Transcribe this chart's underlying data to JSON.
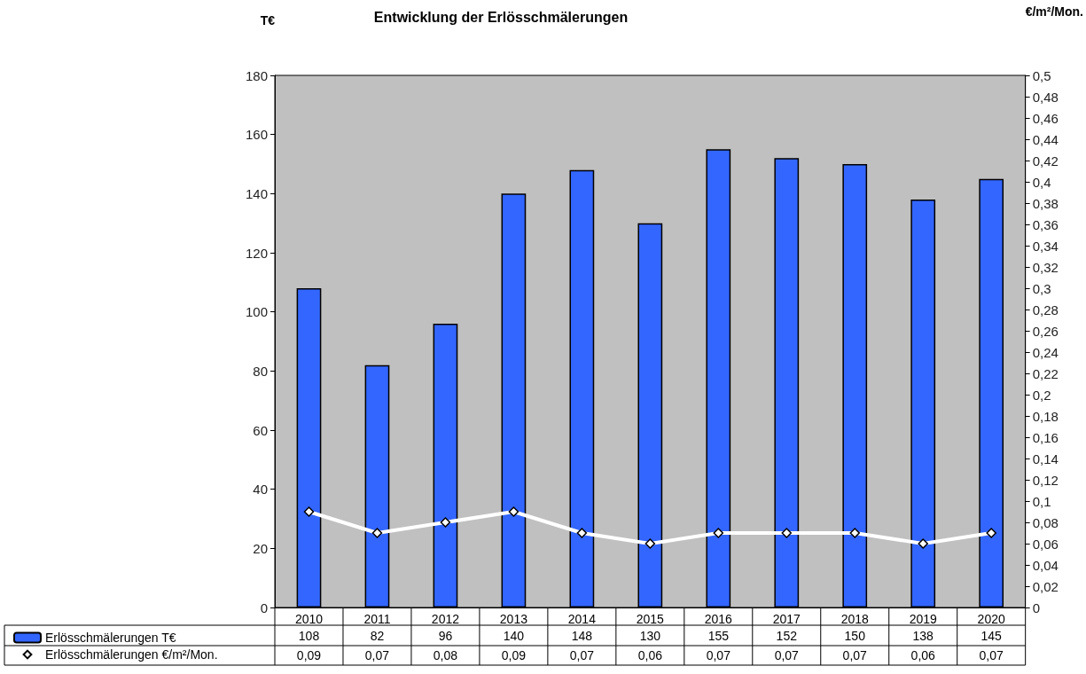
{
  "chart_data": {
    "type": "bar",
    "title": "Entwicklung der Erlösschmälerungen",
    "ylabel": "T€",
    "y2label": "€/m²/Mon.",
    "categories": [
      "2010",
      "2011",
      "2012",
      "2013",
      "2014",
      "2015",
      "2016",
      "2017",
      "2018",
      "2019",
      "2020"
    ],
    "series": [
      {
        "name": "Erlösschmälerungen T€",
        "color": "#3366ff",
        "values": [
          108,
          82,
          96,
          140,
          148,
          130,
          155,
          152,
          150,
          138,
          145
        ],
        "value_labels": [
          "108",
          "82",
          "96",
          "140",
          "148",
          "130",
          "155",
          "152",
          "150",
          "138",
          "145"
        ]
      },
      {
        "name": "Erlösschmälerungen €/m²/Mon.",
        "type": "line",
        "axis": "y2",
        "color": "#ffffff",
        "marker": "diamond",
        "values": [
          0.09,
          0.07,
          0.08,
          0.09,
          0.07,
          0.06,
          0.07,
          0.07,
          0.07,
          0.06,
          0.07
        ],
        "value_labels": [
          "0,09",
          "0,07",
          "0,08",
          "0,09",
          "0,07",
          "0,06",
          "0,07",
          "0,07",
          "0,07",
          "0,06",
          "0,07"
        ]
      }
    ],
    "ylim": [
      0,
      180
    ],
    "yticks": [
      0,
      20,
      40,
      60,
      80,
      100,
      120,
      140,
      160,
      180
    ],
    "y2lim": [
      0,
      0.5
    ],
    "y2ticks": [
      0,
      {
        "value": 0.02,
        "label": "0,02"
      },
      {
        "value": 0.04,
        "label": "0,04"
      },
      {
        "value": 0.06,
        "label": "0,06"
      },
      {
        "value": 0.08,
        "label": "0,08"
      },
      {
        "value": 0.1,
        "label": "0,1"
      },
      {
        "value": 0.12,
        "label": "0,12"
      },
      {
        "value": 0.14,
        "label": "0,14"
      },
      {
        "value": 0.16,
        "label": "0,16"
      },
      {
        "value": 0.18,
        "label": "0,18"
      },
      {
        "value": 0.2,
        "label": "0,2"
      },
      {
        "value": 0.22,
        "label": "0,22"
      },
      {
        "value": 0.24,
        "label": "0,24"
      },
      {
        "value": 0.26,
        "label": "0,26"
      },
      {
        "value": 0.28,
        "label": "0,28"
      },
      {
        "value": 0.3,
        "label": "0,3"
      },
      {
        "value": 0.32,
        "label": "0,32"
      },
      {
        "value": 0.34,
        "label": "0,34"
      },
      {
        "value": 0.36,
        "label": "0,36"
      },
      {
        "value": 0.38,
        "label": "0,38"
      },
      {
        "value": 0.4,
        "label": "0,4"
      },
      {
        "value": 0.42,
        "label": "0,42"
      },
      {
        "value": 0.44,
        "label": "0,44"
      },
      {
        "value": 0.46,
        "label": "0,46"
      },
      {
        "value": 0.48,
        "label": "0,48"
      },
      {
        "value": 0.5,
        "label": "0,5"
      }
    ],
    "legend": "bottom left"
  }
}
